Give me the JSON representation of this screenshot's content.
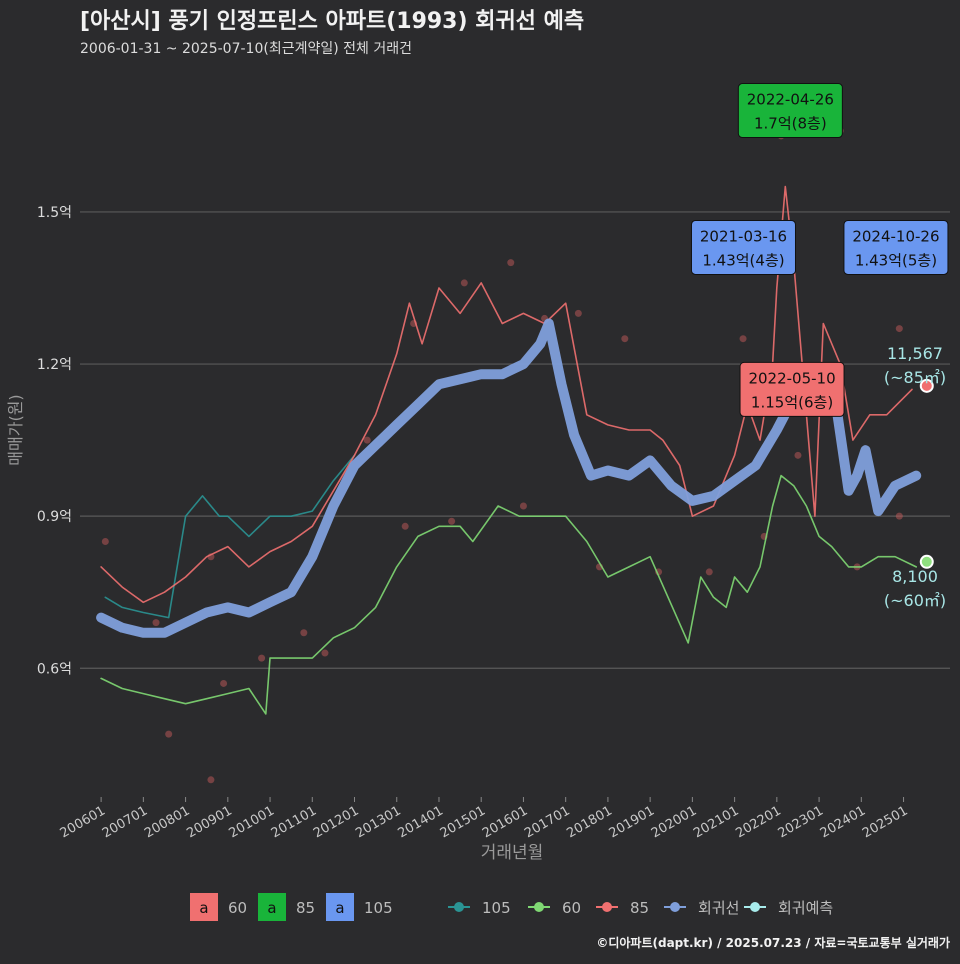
{
  "chart_data": {
    "type": "line",
    "title": "[아산시] 풍기 인정프린스 아파트(1993) 회귀선 예측",
    "subtitle": "2006-01-31 ~ 2025-07-10(최근계약일) 전체 거래건",
    "xlabel": "거래년월",
    "ylabel": "매매가(원)",
    "ylim": [
      0.35,
      1.78
    ],
    "y_ticks": [
      {
        "value": 0.6,
        "label": "0.6억"
      },
      {
        "value": 0.9,
        "label": "0.9억"
      },
      {
        "value": 1.2,
        "label": "1.2억"
      },
      {
        "value": 1.5,
        "label": "1.5억"
      }
    ],
    "x_domain": [
      2005.5,
      2026.1
    ],
    "x_ticks": [
      {
        "value": 2006.0,
        "label": "200601"
      },
      {
        "value": 2007.0,
        "label": "200701"
      },
      {
        "value": 2008.0,
        "label": "200801"
      },
      {
        "value": 2009.0,
        "label": "200901"
      },
      {
        "value": 2010.0,
        "label": "201001"
      },
      {
        "value": 2011.0,
        "label": "201101"
      },
      {
        "value": 2012.0,
        "label": "201201"
      },
      {
        "value": 2013.0,
        "label": "201301"
      },
      {
        "value": 2014.0,
        "label": "201401"
      },
      {
        "value": 2015.0,
        "label": "201501"
      },
      {
        "value": 2016.0,
        "label": "201601"
      },
      {
        "value": 2017.0,
        "label": "201701"
      },
      {
        "value": 2018.0,
        "label": "201801"
      },
      {
        "value": 2019.0,
        "label": "201901"
      },
      {
        "value": 2020.0,
        "label": "202001"
      },
      {
        "value": 2021.0,
        "label": "202101"
      },
      {
        "value": 2022.0,
        "label": "202201"
      },
      {
        "value": 2023.0,
        "label": "202301"
      },
      {
        "value": 2024.0,
        "label": "202401"
      },
      {
        "value": 2025.0,
        "label": "202501"
      }
    ],
    "series": [
      {
        "name": "105",
        "color": "#2a9494",
        "x": [
          2006.1,
          2006.5,
          2007.0,
          2007.6,
          2008.0,
          2008.4,
          2008.8,
          2009.0,
          2009.5,
          2010.0,
          2010.5,
          2011.0,
          2011.5,
          2012.0
        ],
        "y": [
          0.74,
          0.72,
          0.71,
          0.7,
          0.9,
          0.94,
          0.9,
          0.9,
          0.86,
          0.9,
          0.9,
          0.91,
          0.97,
          1.02
        ]
      },
      {
        "name": "60",
        "color": "#7fd873",
        "x": [
          2006.0,
          2006.5,
          2007.0,
          2007.5,
          2008.0,
          2008.5,
          2009.0,
          2009.5,
          2009.9,
          2010.0,
          2010.5,
          2011.0,
          2011.5,
          2012.0,
          2012.5,
          2013.0,
          2013.5,
          2014.0,
          2014.5,
          2014.8,
          2015.4,
          2015.9,
          2016.5,
          2017.0,
          2017.5,
          2018.0,
          2018.5,
          2019.0,
          2019.9,
          2020.2,
          2020.5,
          2020.8,
          2021.0,
          2021.3,
          2021.6,
          2021.9,
          2022.1,
          2022.4,
          2022.7,
          2023.0,
          2023.3,
          2023.7,
          2024.0,
          2024.4,
          2024.8,
          2025.3
        ],
        "y": [
          0.58,
          0.56,
          0.55,
          0.54,
          0.53,
          0.54,
          0.55,
          0.56,
          0.51,
          0.62,
          0.62,
          0.62,
          0.66,
          0.68,
          0.72,
          0.8,
          0.86,
          0.88,
          0.88,
          0.85,
          0.92,
          0.9,
          0.9,
          0.9,
          0.85,
          0.78,
          0.8,
          0.82,
          0.65,
          0.78,
          0.74,
          0.72,
          0.78,
          0.75,
          0.8,
          0.92,
          0.98,
          0.96,
          0.92,
          0.86,
          0.84,
          0.8,
          0.8,
          0.82,
          0.82,
          0.8
        ]
      },
      {
        "name": "85",
        "color": "#f07070",
        "x": [
          2006.0,
          2006.5,
          2007.0,
          2007.5,
          2008.0,
          2008.5,
          2009.0,
          2009.5,
          2010.0,
          2010.5,
          2011.0,
          2011.5,
          2012.0,
          2012.5,
          2013.0,
          2013.3,
          2013.6,
          2014.0,
          2014.5,
          2015.0,
          2015.5,
          2016.0,
          2016.5,
          2017.0,
          2017.5,
          2018.0,
          2018.5,
          2019.0,
          2019.3,
          2019.7,
          2020.0,
          2020.5,
          2021.0,
          2021.3,
          2021.6,
          2021.9,
          2022.0,
          2022.2,
          2022.4,
          2022.6,
          2022.9,
          2023.1,
          2023.5,
          2023.8,
          2024.2,
          2024.6,
          2025.2
        ],
        "y": [
          0.8,
          0.76,
          0.73,
          0.75,
          0.78,
          0.82,
          0.84,
          0.8,
          0.83,
          0.85,
          0.88,
          0.95,
          1.02,
          1.1,
          1.22,
          1.32,
          1.24,
          1.35,
          1.3,
          1.36,
          1.28,
          1.3,
          1.28,
          1.32,
          1.1,
          1.08,
          1.07,
          1.07,
          1.05,
          1.0,
          0.9,
          0.92,
          1.02,
          1.12,
          1.05,
          1.2,
          1.35,
          1.55,
          1.4,
          1.2,
          0.9,
          1.28,
          1.2,
          1.05,
          1.1,
          1.1,
          1.15
        ]
      },
      {
        "name": "회귀선",
        "color": "#7f9fdb",
        "x": [
          2006.0,
          2006.5,
          2007.0,
          2007.5,
          2008.0,
          2008.5,
          2009.0,
          2009.5,
          2010.0,
          2010.5,
          2011.0,
          2011.5,
          2012.0,
          2012.5,
          2013.0,
          2013.5,
          2014.0,
          2014.5,
          2015.0,
          2015.5,
          2016.0,
          2016.4,
          2016.6,
          2016.9,
          2017.2,
          2017.6,
          2018.0,
          2018.5,
          2019.0,
          2019.5,
          2020.0,
          2020.5,
          2021.0,
          2021.5,
          2022.0,
          2022.5,
          2022.8,
          2023.0,
          2023.4,
          2023.7,
          2023.9,
          2024.1,
          2024.4,
          2024.8,
          2025.3
        ],
        "y": [
          0.7,
          0.68,
          0.67,
          0.67,
          0.69,
          0.71,
          0.72,
          0.71,
          0.73,
          0.75,
          0.82,
          0.92,
          1.0,
          1.04,
          1.08,
          1.12,
          1.16,
          1.17,
          1.18,
          1.18,
          1.2,
          1.24,
          1.28,
          1.16,
          1.06,
          0.98,
          0.99,
          0.98,
          1.01,
          0.96,
          0.93,
          0.94,
          0.97,
          1.0,
          1.07,
          1.15,
          1.18,
          1.19,
          1.12,
          0.95,
          0.98,
          1.03,
          0.91,
          0.96,
          0.98
        ]
      }
    ],
    "points": [
      {
        "x": 2007.3,
        "y": 0.69
      },
      {
        "x": 2008.6,
        "y": 0.82
      },
      {
        "x": 2010.8,
        "y": 0.67
      },
      {
        "x": 2012.3,
        "y": 1.05
      },
      {
        "x": 2013.4,
        "y": 1.28
      },
      {
        "x": 2014.6,
        "y": 1.36
      },
      {
        "x": 2015.7,
        "y": 1.4
      },
      {
        "x": 2016.5,
        "y": 1.29
      },
      {
        "x": 2017.3,
        "y": 1.3
      },
      {
        "x": 2018.4,
        "y": 1.25
      },
      {
        "x": 2021.2,
        "y": 1.25
      },
      {
        "x": 2022.1,
        "y": 1.65
      },
      {
        "x": 2023.5,
        "y": 1.66
      },
      {
        "x": 2024.9,
        "y": 1.27
      },
      {
        "x": 2008.9,
        "y": 0.57
      },
      {
        "x": 2011.3,
        "y": 0.63
      },
      {
        "x": 2013.2,
        "y": 0.88
      },
      {
        "x": 2017.8,
        "y": 0.8
      },
      {
        "x": 2019.2,
        "y": 0.79
      },
      {
        "x": 2020.4,
        "y": 0.79
      },
      {
        "x": 2021.7,
        "y": 0.86
      },
      {
        "x": 2022.5,
        "y": 1.02
      },
      {
        "x": 2023.9,
        "y": 0.8
      },
      {
        "x": 2024.9,
        "y": 0.9
      },
      {
        "x": 2007.6,
        "y": 0.47
      },
      {
        "x": 2008.6,
        "y": 0.38
      },
      {
        "x": 2006.1,
        "y": 0.85
      },
      {
        "x": 2009.8,
        "y": 0.62
      },
      {
        "x": 2014.3,
        "y": 0.89
      },
      {
        "x": 2016.0,
        "y": 0.92
      }
    ],
    "annotations": [
      {
        "date": "2022-04-26",
        "text": "1.7억(8층)",
        "color": "#19b43a",
        "x": 2022.32,
        "y": 1.7
      },
      {
        "date": "2021-03-16",
        "text": "1.43억(4층)",
        "color": "#6a97f0",
        "x": 2021.21,
        "y": 1.43
      },
      {
        "date": "2024-10-26",
        "text": "1.43억(5층)",
        "color": "#6a97f0",
        "x": 2024.82,
        "y": 1.43
      },
      {
        "date": "2022-05-10",
        "text": "1.15억(6층)",
        "color": "#f07070",
        "x": 2022.36,
        "y": 1.15
      }
    ],
    "predictions": [
      {
        "value": "11,567",
        "sub": "(~85㎡)",
        "color": "#f07070",
        "x": 2025.55,
        "y": 1.157
      },
      {
        "value": "8,100",
        "sub": "(~60㎡)",
        "color": "#8fe07f",
        "x": 2025.55,
        "y": 0.81
      }
    ],
    "legend_fill": [
      {
        "label": "60",
        "color": "#f07070"
      },
      {
        "label": "85",
        "color": "#19b43a"
      },
      {
        "label": "105",
        "color": "#6a97f0"
      }
    ],
    "legend_line": [
      {
        "label": "105",
        "color": "#2a9494"
      },
      {
        "label": "60",
        "color": "#7fd873"
      },
      {
        "label": "85",
        "color": "#f07070"
      },
      {
        "label": "회귀선",
        "color": "#7f9fdb"
      },
      {
        "label": "회귀예측",
        "color": "#a8ecec"
      }
    ],
    "legend_letter": "a",
    "credit": "©디아파트(dapt.kr) / 2025.07.23 / 자료=국토교통부 실거래가"
  }
}
